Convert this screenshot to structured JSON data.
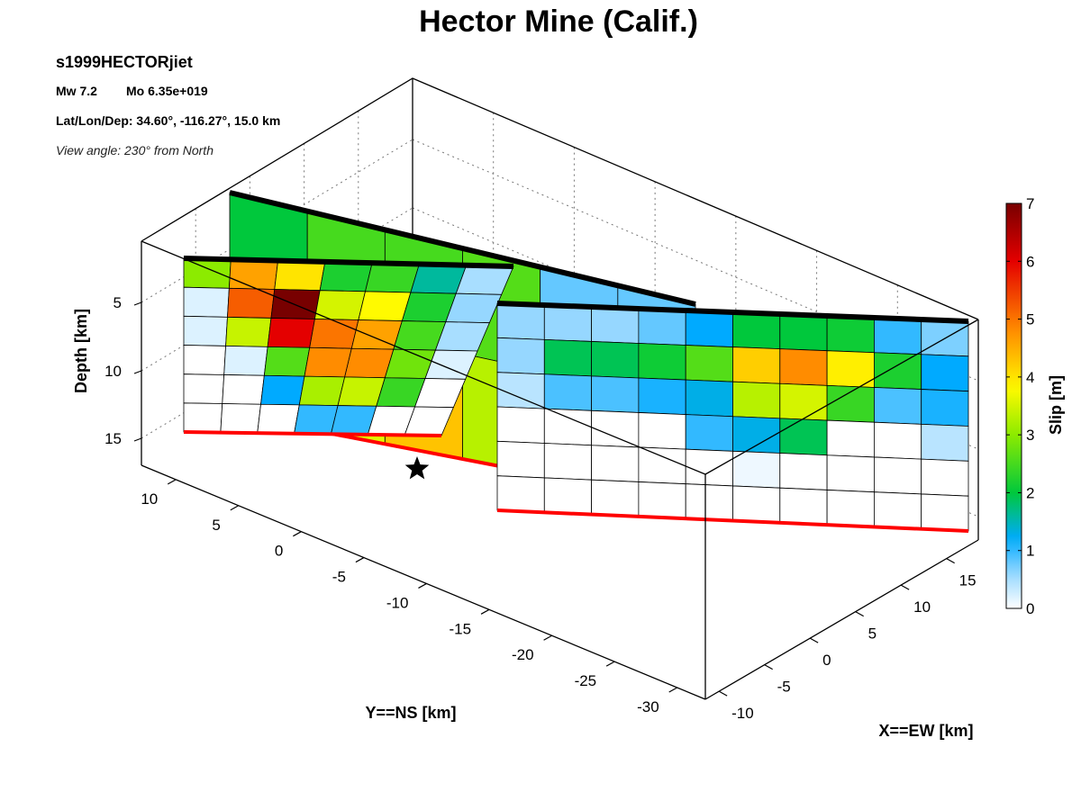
{
  "chart_data": {
    "type": "heatmap",
    "title": "Hector Mine (Calif.)",
    "event_id": "s1999HECTORjiet",
    "magnitude": "Mw 7.2",
    "moment": "Mo 6.35e+019",
    "location": "Lat/Lon/Dep: 34.60°, -116.27°, 15.0 km",
    "view_angle": "View angle: 230° from North",
    "zlabel": "Depth [km]",
    "ylabel": "Y==NS [km]",
    "xlabel": "X==EW [km]",
    "colorbar_label": "Slip [m]",
    "colorbar_range": [
      0,
      7
    ],
    "colorbar_ticks": [
      "0",
      "1",
      "2",
      "3",
      "4",
      "5",
      "6",
      "7"
    ],
    "depth_ticks": [
      "5",
      "10",
      "15"
    ],
    "ns_ticks": [
      "10",
      "5",
      "0",
      "-5",
      "-10",
      "-15",
      "-20",
      "-25",
      "-30"
    ],
    "ew_ticks": [
      "-10",
      "-5",
      "0",
      "5",
      "10",
      "15"
    ],
    "hypocenter_marker": "star",
    "colors": {
      "surface_trace": "#000000",
      "bottom_edge": "#ff0000"
    },
    "segments": [
      {
        "name": "segment-1",
        "slip": [
          [
            2.0,
            2.5,
            2.5,
            2.6,
            0.8,
            0.8
          ],
          [
            2.0,
            3.6,
            4.3,
            3.3,
            0.8,
            0.8
          ]
        ]
      },
      {
        "name": "segment-2",
        "slip": [
          [
            3.0,
            4.6,
            4.0,
            2.2,
            2.4,
            1.6,
            0.5
          ],
          [
            0.2,
            5.2,
            7.0,
            3.5,
            3.8,
            2.2,
            0.6
          ],
          [
            0.2,
            3.4,
            6.0,
            5.0,
            4.6,
            2.5,
            0.5
          ],
          [
            0.0,
            0.2,
            2.6,
            4.8,
            4.8,
            2.8,
            0.2
          ],
          [
            0.0,
            0.0,
            1.2,
            3.2,
            3.4,
            2.4,
            0.0
          ],
          [
            0.0,
            0.0,
            0.0,
            1.0,
            1.0,
            0.0,
            0.0
          ]
        ]
      },
      {
        "name": "segment-3",
        "slip": [
          [
            0.6,
            0.6,
            0.6,
            0.8,
            1.2,
            2.0,
            2.0,
            2.1,
            1.0,
            0.7
          ],
          [
            0.6,
            1.9,
            1.9,
            2.1,
            2.6,
            4.2,
            4.8,
            3.9,
            2.2,
            1.2
          ],
          [
            0.4,
            0.9,
            0.9,
            1.1,
            1.3,
            3.3,
            3.5,
            2.4,
            0.9,
            1.1
          ],
          [
            0.0,
            0.0,
            0.0,
            0.0,
            1.0,
            1.3,
            1.9,
            0.0,
            0.0,
            0.4
          ],
          [
            0.0,
            0.0,
            0.0,
            0.0,
            0.0,
            0.1,
            0.0,
            0.0,
            0.0,
            0.0
          ],
          [
            0.0,
            0.0,
            0.0,
            0.0,
            0.0,
            0.0,
            0.0,
            0.0,
            0.0,
            0.0
          ]
        ]
      }
    ]
  }
}
